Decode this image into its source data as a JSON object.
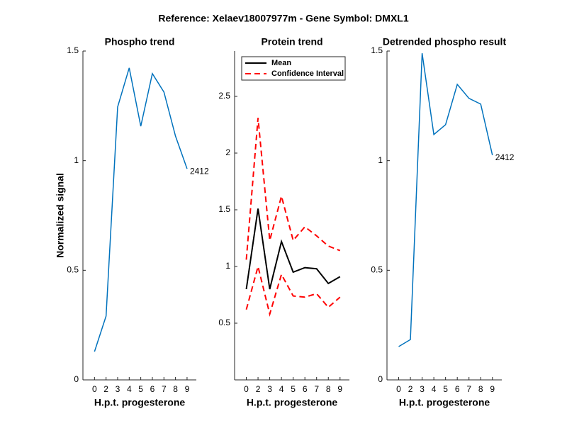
{
  "title": "Reference:  Xelaev18007977m - Gene Symbol:  DMXL1",
  "chart_data": [
    {
      "type": "line",
      "title": "Phospho trend",
      "xlabel": "H.p.t. progesterone",
      "ylabel": "Normalized signal",
      "categories": [
        "0",
        "2",
        "3",
        "4",
        "5",
        "6",
        "7",
        "8",
        "9"
      ],
      "series": [
        {
          "color": "#0072bd",
          "values": [
            0.129,
            0.291,
            1.245,
            1.423,
            1.157,
            1.397,
            1.313,
            1.112,
            0.963
          ]
        }
      ],
      "annotation": "2412",
      "ylim": [
        0,
        1.5
      ],
      "yticks": [
        0,
        0.5,
        1,
        1.5
      ]
    },
    {
      "type": "line",
      "title": "Protein trend",
      "xlabel": "H.p.t. progesterone",
      "categories": [
        "0",
        "2",
        "3",
        "4",
        "5",
        "6",
        "7",
        "8",
        "9"
      ],
      "series": [
        {
          "name": "Mean",
          "color": "#000000",
          "values": [
            0.8,
            1.51,
            0.8,
            1.22,
            0.95,
            0.99,
            0.98,
            0.85,
            0.91
          ]
        },
        {
          "name": "Confidence Interval",
          "color": "#ff0000",
          "dashed": true,
          "upper": [
            1.06,
            2.31,
            1.23,
            1.62,
            1.23,
            1.35,
            1.27,
            1.18,
            1.14
          ],
          "lower": [
            0.62,
            1.0,
            0.58,
            0.93,
            0.74,
            0.73,
            0.76,
            0.64,
            0.73
          ]
        }
      ],
      "legend": "upper-left",
      "ylim": [
        0,
        2.9
      ],
      "yticks": [
        0.5,
        1,
        1.5,
        2,
        2.5
      ]
    },
    {
      "type": "line",
      "title": "Detrended phospho result",
      "xlabel": "H.p.t. progesterone",
      "categories": [
        "0",
        "2",
        "3",
        "4",
        "5",
        "6",
        "7",
        "8",
        "9"
      ],
      "series": [
        {
          "color": "#0072bd",
          "values": [
            0.152,
            0.184,
            1.49,
            1.119,
            1.164,
            1.348,
            1.284,
            1.258,
            1.025
          ]
        }
      ],
      "annotation": "2412",
      "ylim": [
        0,
        1.5
      ],
      "yticks": [
        0,
        0.5,
        1,
        1.5
      ]
    }
  ]
}
